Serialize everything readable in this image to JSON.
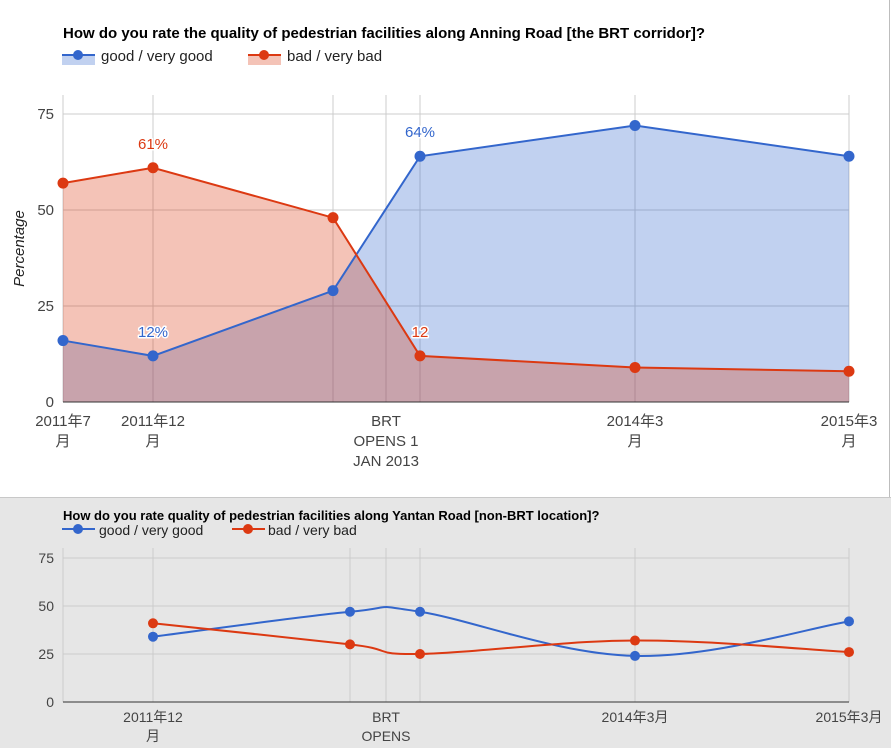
{
  "colors": {
    "good": "#3366cc",
    "bad": "#dc3912"
  },
  "chart_data": [
    {
      "type": "area",
      "title": "How do you rate the quality of pedestrian facilities along Anning Road [the BRT corridor]?",
      "xlabel": "",
      "ylabel": "Percentage",
      "ylim": [
        0,
        75
      ],
      "yticks": [
        "0",
        "25",
        "50",
        "75"
      ],
      "legend": "top-left",
      "grid": true,
      "categories": [
        [
          "2011年7",
          "月"
        ],
        [
          "2011年12",
          "月"
        ],
        [],
        [
          "BRT",
          "OPENS 1",
          "JAN 2013"
        ],
        [],
        [
          "2014年3",
          "月"
        ],
        [
          "2015年3",
          "月"
        ]
      ],
      "series": [
        {
          "name": "good / very good",
          "color": "#3366cc",
          "values": [
            16,
            12,
            29,
            null,
            64,
            72,
            64
          ],
          "labels": [
            "",
            "12%",
            "",
            "",
            "64%",
            "",
            ""
          ]
        },
        {
          "name": "bad / very bad",
          "color": "#dc3912",
          "values": [
            57,
            61,
            48,
            null,
            12,
            9,
            8
          ],
          "labels": [
            "",
            "61%",
            "",
            "",
            "12",
            "",
            ""
          ]
        }
      ]
    },
    {
      "type": "line",
      "title": "How do you rate quality of pedestrian facilities along Yantan Road [non-BRT location]?",
      "xlabel": "",
      "ylabel": "",
      "ylim": [
        0,
        75
      ],
      "yticks": [
        "0",
        "25",
        "50",
        "75"
      ],
      "legend": "top-left",
      "grid": true,
      "categories": [
        [],
        [
          "2011年12",
          "月"
        ],
        [],
        [
          "BRT",
          "OPENS"
        ],
        [],
        [
          "2014年3月"
        ],
        [
          "2015年3月"
        ]
      ],
      "series": [
        {
          "name": "good / very good",
          "color": "#3366cc",
          "values": [
            null,
            34,
            47,
            null,
            47,
            24,
            42
          ]
        },
        {
          "name": "bad / very bad",
          "color": "#dc3912",
          "values": [
            null,
            41,
            30,
            null,
            25,
            32,
            26
          ]
        }
      ]
    }
  ]
}
